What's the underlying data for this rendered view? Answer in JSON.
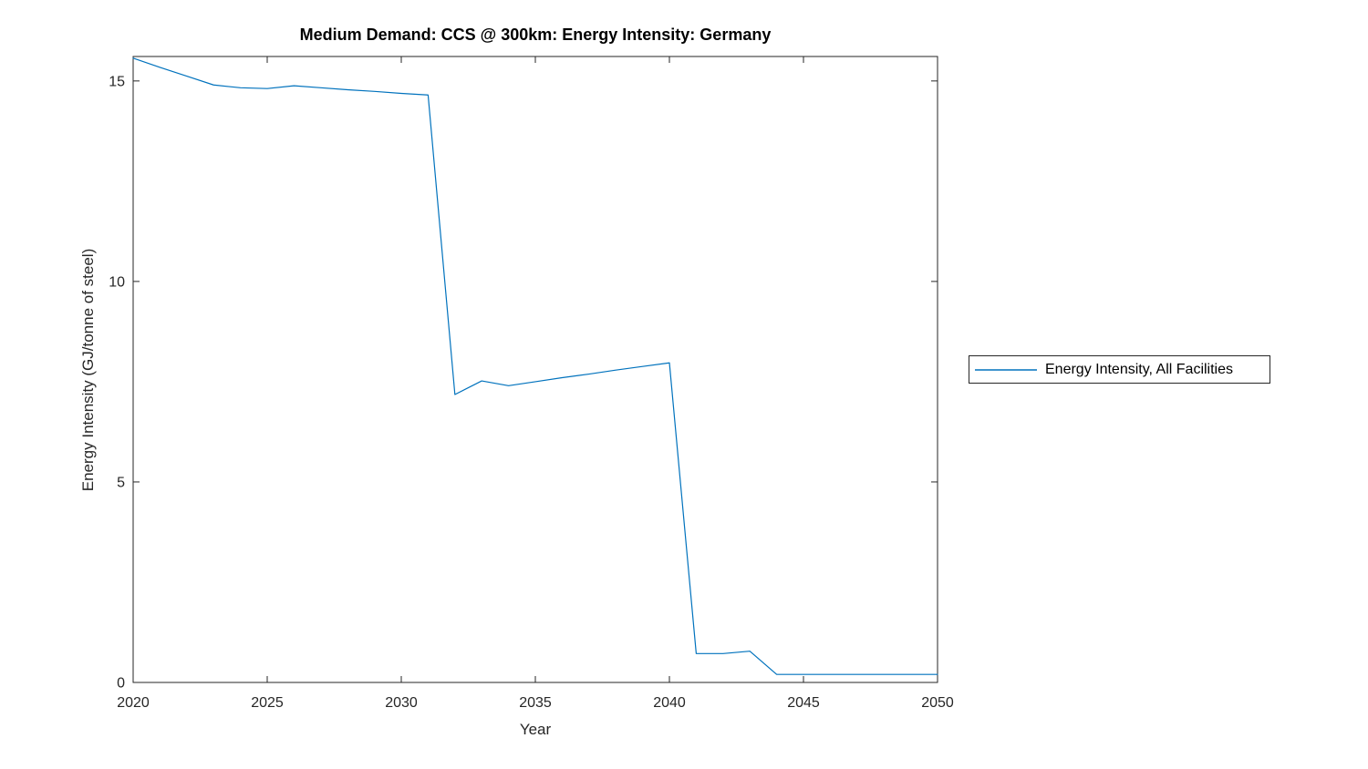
{
  "colors": {
    "line": "#0072BD",
    "axis": "#262626",
    "text": "#262626",
    "title": "#000000",
    "background": "#ffffff"
  },
  "chart_data": {
    "type": "line",
    "title": "Medium Demand: CCS @ 300km: Energy Intensity: Germany",
    "xlabel": "Year",
    "ylabel": "Energy Intensity (GJ/tonne of steel)",
    "xlim": [
      2020,
      2050
    ],
    "ylim": [
      0,
      15.61
    ],
    "x_ticks": [
      2020,
      2025,
      2030,
      2035,
      2040,
      2045,
      2050
    ],
    "y_ticks": [
      0,
      5,
      10,
      15
    ],
    "grid": false,
    "legend_position": "outside-right",
    "series": [
      {
        "name": "Energy Intensity, All Facilities",
        "color": "#0072BD",
        "x": [
          2020,
          2021,
          2022,
          2023,
          2024,
          2025,
          2026,
          2027,
          2028,
          2029,
          2030,
          2031,
          2032,
          2033,
          2034,
          2035,
          2036,
          2037,
          2038,
          2039,
          2040,
          2041,
          2042,
          2043,
          2044,
          2045,
          2046,
          2047,
          2048,
          2049,
          2050
        ],
        "y": [
          15.57,
          15.34,
          15.12,
          14.9,
          14.83,
          14.81,
          14.88,
          14.83,
          14.78,
          14.74,
          14.69,
          14.65,
          7.18,
          7.52,
          7.4,
          7.5,
          7.6,
          7.69,
          7.79,
          7.88,
          7.97,
          0.72,
          0.72,
          0.78,
          0.2,
          0.2,
          0.2,
          0.2,
          0.2,
          0.2,
          0.2
        ]
      }
    ]
  }
}
